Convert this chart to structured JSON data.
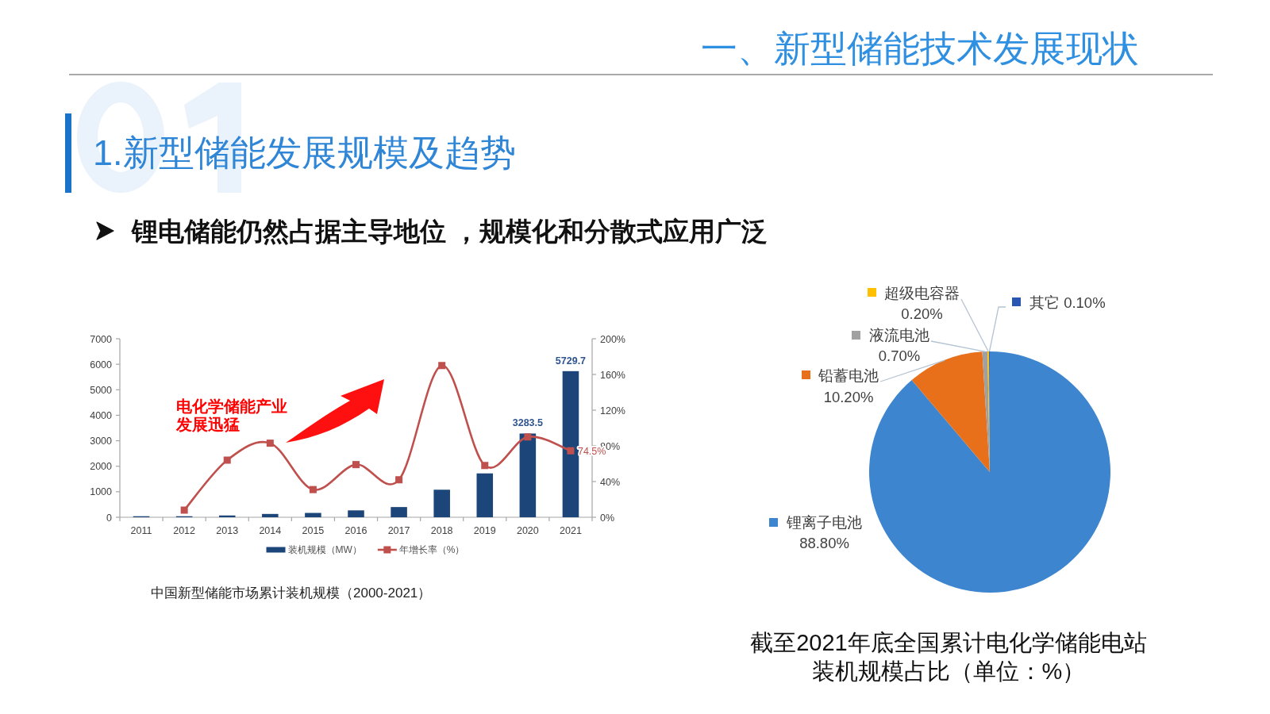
{
  "chart_data": [
    {
      "type": "other",
      "title": "一、新型储能技术发展现状",
      "subtitle": "1.新型储能发展规模及趋势",
      "annotations": [
        "锂电储能仍然占据主导地位 ，规模化和分散式应用广泛"
      ]
    },
    {
      "type": "bar",
      "title": "中国新型储能市场累计装机规模（2000-2021）",
      "annotations": [
        "电化学储能产业发展迅猛"
      ],
      "categories": [
        "2011",
        "2012",
        "2013",
        "2014",
        "2015",
        "2016",
        "2017",
        "2018",
        "2019",
        "2020",
        "2021"
      ],
      "series": [
        {
          "name": "装机规模（MW）",
          "type": "bar",
          "color": "#1c4679",
          "values": [
            40,
            40,
            70,
            130,
            170,
            270,
            400,
            1080,
            1720,
            3283.5,
            5729.7
          ],
          "value_labels": [
            null,
            null,
            null,
            null,
            null,
            null,
            null,
            null,
            null,
            "3283.5",
            "5729.7"
          ]
        },
        {
          "name": "年增长率（%）",
          "type": "line",
          "axis": "y2",
          "color": "#c0504d",
          "values": [
            null,
            8,
            64,
            83,
            31,
            59,
            42,
            170,
            58,
            90,
            74.5
          ],
          "value_labels": [
            null,
            null,
            null,
            null,
            null,
            null,
            null,
            null,
            null,
            null,
            "74.5%"
          ]
        }
      ],
      "ylim": [
        0,
        7000
      ],
      "yticks": [
        0,
        1000,
        2000,
        3000,
        4000,
        5000,
        6000,
        7000
      ],
      "y2lim": [
        0,
        200
      ],
      "y2ticks": [
        {
          "value": 0,
          "label": "0%"
        },
        {
          "value": 40,
          "label": "40%"
        },
        {
          "value": 80,
          "label": "80%"
        },
        {
          "value": 120,
          "label": "120%"
        },
        {
          "value": 160,
          "label": "160%"
        },
        {
          "value": 200,
          "label": "200%"
        }
      ],
      "marker": "square",
      "legend": "bottom"
    },
    {
      "type": "pie",
      "title": "截至2021年底全国累计电化学储能电站装机规模占比（单位：%）",
      "categories": [
        "锂离子电池",
        "铅蓄电池",
        "液流电池",
        "超级电容器",
        "其它"
      ],
      "values": [
        88.8,
        10.2,
        0.7,
        0.2,
        0.1
      ],
      "colors": [
        "#3d86cf",
        "#e8701a",
        "#a0a0a0",
        "#ffc000",
        "#2856b0"
      ],
      "value_labels": [
        "88.80%",
        "10.20%",
        "0.70%",
        "0.20%",
        "0.10%"
      ],
      "legend": "top left"
    }
  ]
}
